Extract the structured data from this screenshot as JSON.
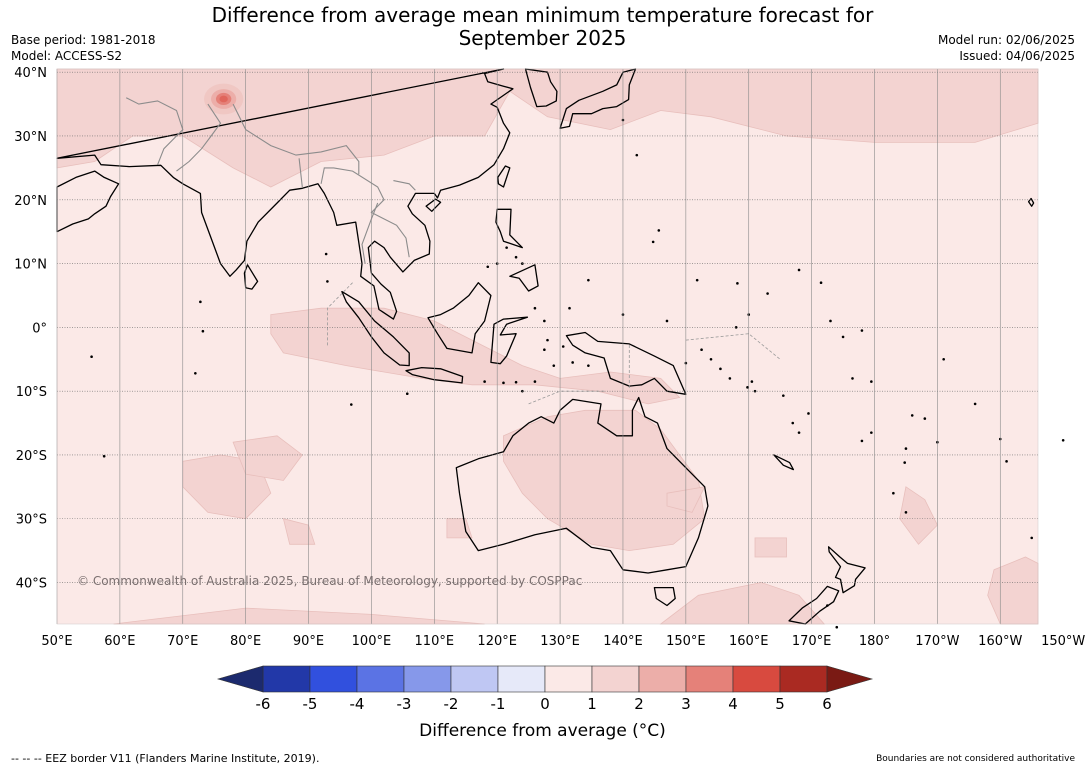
{
  "title": {
    "line1": "Difference from average mean minimum temperature forecast for",
    "line2": "September 2025"
  },
  "meta_left": {
    "base_period": "Base period: 1981-2018",
    "model": "Model: ACCESS-S2"
  },
  "meta_right": {
    "model_run": "Model run: 02/06/2025",
    "issued": "Issued: 04/06/2025"
  },
  "map": {
    "projection": "equirectangular",
    "lon_range": [
      50,
      206
    ],
    "lat_range": [
      -46.5,
      40.5
    ],
    "lat_ticks": [
      {
        "value": 40,
        "label": "40°N"
      },
      {
        "value": 30,
        "label": "30°N"
      },
      {
        "value": 20,
        "label": "20°N"
      },
      {
        "value": 10,
        "label": "10°N"
      },
      {
        "value": 0,
        "label": "0°"
      },
      {
        "value": -10,
        "label": "10°S"
      },
      {
        "value": -20,
        "label": "20°S"
      },
      {
        "value": -30,
        "label": "30°S"
      },
      {
        "value": -40,
        "label": "40°S"
      }
    ],
    "lon_ticks": [
      {
        "value": 50,
        "label": "50°E"
      },
      {
        "value": 60,
        "label": "60°E"
      },
      {
        "value": 70,
        "label": "70°E"
      },
      {
        "value": 80,
        "label": "80°E"
      },
      {
        "value": 90,
        "label": "90°E"
      },
      {
        "value": 100,
        "label": "100°E"
      },
      {
        "value": 110,
        "label": "110°E"
      },
      {
        "value": 120,
        "label": "120°E"
      },
      {
        "value": 130,
        "label": "130°E"
      },
      {
        "value": 140,
        "label": "140°E"
      },
      {
        "value": 150,
        "label": "150°E"
      },
      {
        "value": 160,
        "label": "160°E"
      },
      {
        "value": 170,
        "label": "170°E"
      },
      {
        "value": 180,
        "label": "180°"
      },
      {
        "value": 190,
        "label": "170°W"
      },
      {
        "value": 200,
        "label": "160°W"
      },
      {
        "value": 210,
        "label": "150°W"
      }
    ],
    "background_color": "#fbe9e7",
    "warm_color": "#f3d3d1",
    "hot_color": "#e0665c",
    "copyright": "© Commonwealth of Australia 2025, Bureau of Meteorology, supported by COSPPac"
  },
  "colorbar": {
    "ticks": [
      "-6",
      "-5",
      "-4",
      "-3",
      "-2",
      "-1",
      "0",
      "1",
      "2",
      "3",
      "4",
      "5",
      "6"
    ],
    "under_color": "#1c2a6e",
    "over_color": "#7a1a14",
    "colors": [
      "#2238a8",
      "#3150de",
      "#5b73e4",
      "#8698ea",
      "#bfc7f3",
      "#e6e9f9",
      "#fbe9e7",
      "#f3d3d1",
      "#ecaea9",
      "#e58179",
      "#d84a3f",
      "#aa2a22"
    ],
    "title": "Difference from average (°C)"
  },
  "footer": {
    "legend": "--  --  -- EEZ border V11 (Flanders Marine Institute, 2019).",
    "disclaimer": "Boundaries are not considered authoritative"
  }
}
